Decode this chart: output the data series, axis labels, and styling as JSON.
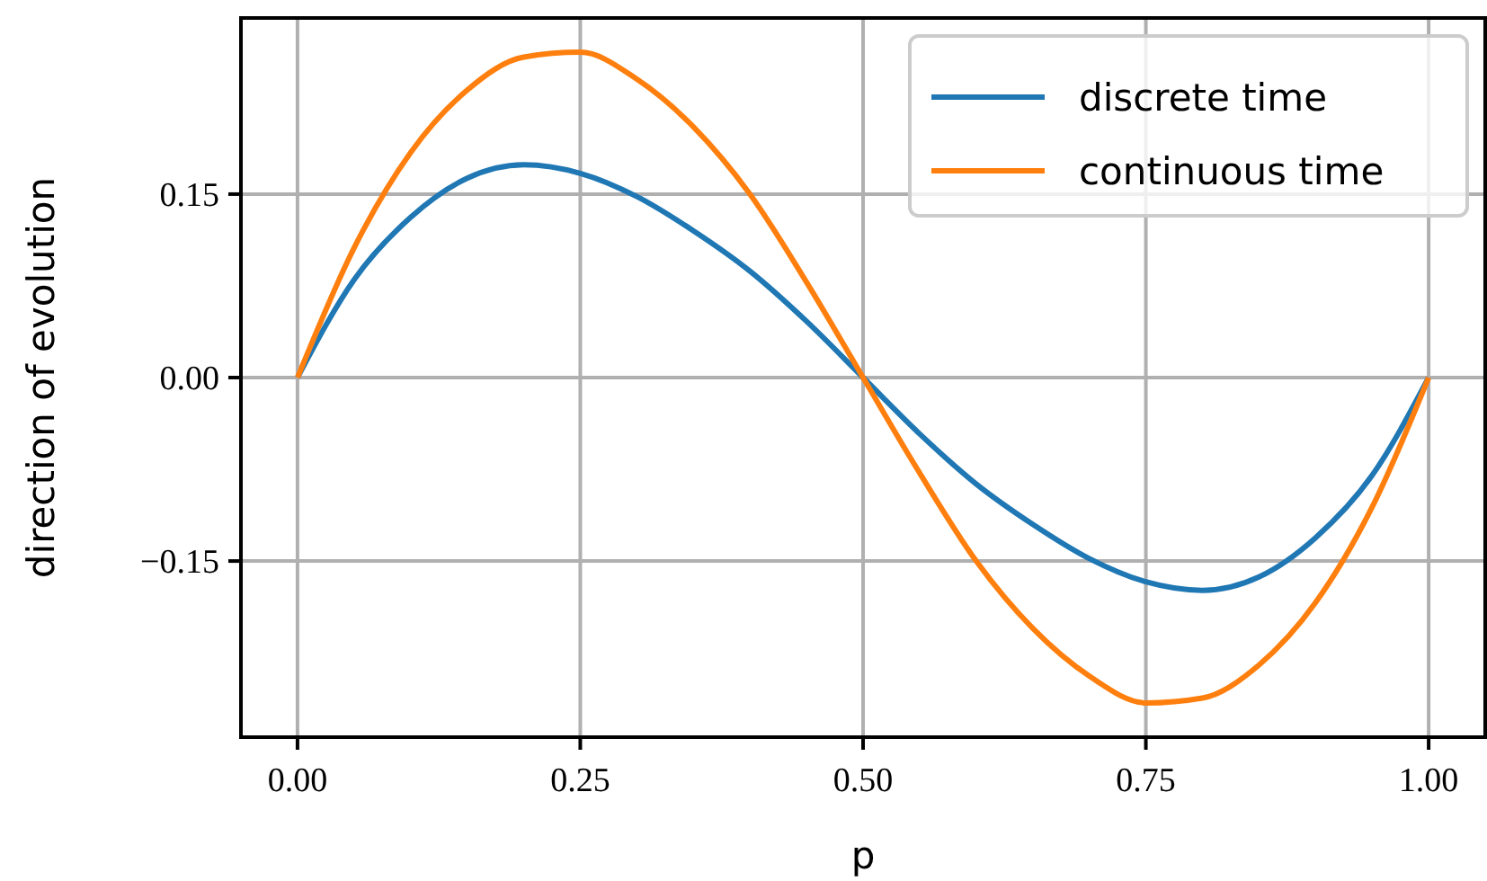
{
  "chart_data": {
    "type": "line",
    "xlabel": "p",
    "ylabel": "direction of evolution",
    "x": [
      0,
      0.05,
      0.1,
      0.15,
      0.2,
      0.25,
      0.3,
      0.35,
      0.4,
      0.45,
      0.5,
      0.55,
      0.6,
      0.65,
      0.7,
      0.75,
      0.8,
      0.85,
      0.9,
      0.95,
      1
    ],
    "series": [
      {
        "name": "discrete time",
        "color": "#1f77b4",
        "values": [
          0,
          0.08,
          0.131,
          0.163,
          0.174,
          0.167,
          0.148,
          0.12,
          0.087,
          0.046,
          0,
          -0.046,
          -0.087,
          -0.12,
          -0.148,
          -0.167,
          -0.174,
          -0.163,
          -0.131,
          -0.08,
          0
        ]
      },
      {
        "name": "continuous time",
        "color": "#ff7f0e",
        "values": [
          0,
          0.106,
          0.184,
          0.235,
          0.262,
          0.266,
          0.244,
          0.205,
          0.15,
          0.078,
          0,
          -0.078,
          -0.15,
          -0.205,
          -0.244,
          -0.266,
          -0.262,
          -0.235,
          -0.184,
          -0.106,
          0
        ]
      }
    ],
    "xlim": [
      -0.05,
      1.05
    ],
    "xticks": [
      {
        "value": 0,
        "label": "0.00"
      },
      {
        "value": 0.25,
        "label": "0.25"
      },
      {
        "value": 0.5,
        "label": "0.50"
      },
      {
        "value": 0.75,
        "label": "0.75"
      },
      {
        "value": 1,
        "label": "1.00"
      }
    ],
    "ylim": [
      -0.294,
      0.294
    ],
    "yticks": [
      {
        "value": -0.15,
        "label": "−0.15"
      },
      {
        "value": 0,
        "label": "0.00"
      },
      {
        "value": 0.15,
        "label": "0.15"
      }
    ],
    "grid": true,
    "legend": "top right",
    "line_style": "solid",
    "marker": "none"
  }
}
